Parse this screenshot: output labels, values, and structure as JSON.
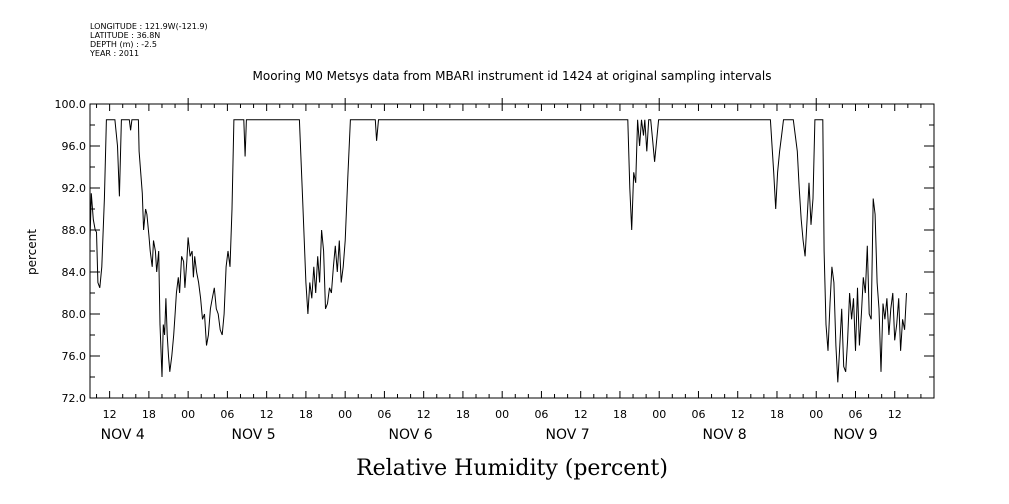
{
  "meta": {
    "longitude": "LONGITUDE : 121.9W(-121.9)",
    "latitude": "LATITUDE : 36.8N",
    "depth": "DEPTH (m) : -2.5",
    "year": "YEAR : 2011"
  },
  "chart_data": {
    "type": "line",
    "title": "Mooring M0 Metsys data from MBARI instrument id 1424 at original sampling intervals",
    "xlabel": "Relative Humidity (percent)",
    "ylabel": "percent",
    "ylim": [
      72.0,
      100.0
    ],
    "xlim_hours": [
      -15,
      114
    ],
    "y_ticks": [
      "72.0",
      "76.0",
      "80.0",
      "84.0",
      "88.0",
      "92.0",
      "96.0",
      "100.0"
    ],
    "x_ticks": [
      {
        "hour": -12,
        "label": "12"
      },
      {
        "hour": -6,
        "label": "18"
      },
      {
        "hour": 0,
        "label": "00"
      },
      {
        "hour": 6,
        "label": "06"
      },
      {
        "hour": 12,
        "label": "12"
      },
      {
        "hour": 18,
        "label": "18"
      },
      {
        "hour": 24,
        "label": "00"
      },
      {
        "hour": 30,
        "label": "06"
      },
      {
        "hour": 36,
        "label": "12"
      },
      {
        "hour": 42,
        "label": "18"
      },
      {
        "hour": 48,
        "label": "00"
      },
      {
        "hour": 54,
        "label": "06"
      },
      {
        "hour": 60,
        "label": "12"
      },
      {
        "hour": 66,
        "label": "18"
      },
      {
        "hour": 72,
        "label": "00"
      },
      {
        "hour": 78,
        "label": "06"
      },
      {
        "hour": 84,
        "label": "12"
      },
      {
        "hour": 90,
        "label": "18"
      },
      {
        "hour": 96,
        "label": "00"
      },
      {
        "hour": 102,
        "label": "06"
      },
      {
        "hour": 108,
        "label": "12"
      }
    ],
    "day_labels": [
      {
        "hour": -10,
        "label": "NOV  4"
      },
      {
        "hour": 10,
        "label": "NOV  5"
      },
      {
        "hour": 34,
        "label": "NOV  6"
      },
      {
        "hour": 58,
        "label": "NOV  7"
      },
      {
        "hour": 82,
        "label": "NOV  8"
      },
      {
        "hour": 102,
        "label": "NOV  9"
      }
    ],
    "grid": false,
    "series": [
      {
        "color": "#000000",
        "points": [
          [
            -15.0,
            87.0
          ],
          [
            -14.8,
            91.5
          ],
          [
            -14.5,
            89.0
          ],
          [
            -14.2,
            88.0
          ],
          [
            -14.0,
            87.8
          ],
          [
            -13.8,
            83.0
          ],
          [
            -13.5,
            82.5
          ],
          [
            -13.2,
            84.5
          ],
          [
            -12.8,
            91.0
          ],
          [
            -12.5,
            98.5
          ],
          [
            -11.2,
            98.5
          ],
          [
            -10.8,
            96.0
          ],
          [
            -10.5,
            91.2
          ],
          [
            -10.2,
            98.5
          ],
          [
            -9.0,
            98.5
          ],
          [
            -8.8,
            97.5
          ],
          [
            -8.6,
            98.5
          ],
          [
            -7.6,
            98.5
          ],
          [
            -7.5,
            95.5
          ],
          [
            -7.0,
            91.5
          ],
          [
            -6.8,
            88.0
          ],
          [
            -6.5,
            90.0
          ],
          [
            -6.3,
            89.5
          ],
          [
            -6.0,
            87.5
          ],
          [
            -5.8,
            86.0
          ],
          [
            -5.5,
            84.5
          ],
          [
            -5.3,
            87.0
          ],
          [
            -5.0,
            86.0
          ],
          [
            -4.8,
            84.0
          ],
          [
            -4.5,
            86.0
          ],
          [
            -4.3,
            79.0
          ],
          [
            -4.0,
            74.0
          ],
          [
            -3.8,
            79.0
          ],
          [
            -3.6,
            78.0
          ],
          [
            -3.4,
            81.5
          ],
          [
            -3.2,
            78.0
          ],
          [
            -3.0,
            76.0
          ],
          [
            -2.8,
            74.5
          ],
          [
            -2.5,
            76.0
          ],
          [
            -2.2,
            78.0
          ],
          [
            -2.0,
            80.0
          ],
          [
            -1.8,
            82.0
          ],
          [
            -1.5,
            83.5
          ],
          [
            -1.3,
            82.0
          ],
          [
            -1.0,
            85.5
          ],
          [
            -0.7,
            85.0
          ],
          [
            -0.5,
            82.5
          ],
          [
            -0.2,
            85.0
          ],
          [
            0.0,
            87.3
          ],
          [
            0.3,
            85.5
          ],
          [
            0.6,
            86.0
          ],
          [
            0.8,
            83.5
          ],
          [
            1.0,
            85.5
          ],
          [
            1.3,
            84.0
          ],
          [
            1.6,
            83.0
          ],
          [
            1.9,
            81.5
          ],
          [
            2.2,
            79.5
          ],
          [
            2.5,
            80.0
          ],
          [
            2.8,
            77.0
          ],
          [
            3.1,
            78.0
          ],
          [
            3.4,
            80.5
          ],
          [
            3.7,
            81.5
          ],
          [
            4.0,
            82.5
          ],
          [
            4.3,
            80.5
          ],
          [
            4.6,
            80.0
          ],
          [
            4.9,
            78.5
          ],
          [
            5.2,
            78.0
          ],
          [
            5.5,
            80.0
          ],
          [
            5.8,
            84.5
          ],
          [
            6.1,
            86.0
          ],
          [
            6.4,
            84.5
          ],
          [
            6.7,
            90.0
          ],
          [
            7.0,
            98.5
          ],
          [
            8.5,
            98.5
          ],
          [
            8.7,
            95.0
          ],
          [
            8.9,
            98.5
          ],
          [
            17.0,
            98.5
          ],
          [
            17.5,
            91.0
          ],
          [
            18.0,
            83.0
          ],
          [
            18.3,
            80.0
          ],
          [
            18.6,
            83.0
          ],
          [
            18.9,
            81.5
          ],
          [
            19.2,
            84.5
          ],
          [
            19.5,
            82.0
          ],
          [
            19.8,
            85.5
          ],
          [
            20.1,
            83.0
          ],
          [
            20.4,
            88.0
          ],
          [
            20.7,
            86.0
          ],
          [
            21.0,
            80.5
          ],
          [
            21.3,
            81.0
          ],
          [
            21.6,
            82.5
          ],
          [
            21.9,
            82.0
          ],
          [
            22.2,
            84.5
          ],
          [
            22.5,
            86.5
          ],
          [
            22.8,
            84.0
          ],
          [
            23.1,
            87.0
          ],
          [
            23.4,
            83.0
          ],
          [
            23.7,
            84.5
          ],
          [
            24.0,
            87.0
          ],
          [
            24.4,
            93.0
          ],
          [
            24.8,
            98.5
          ],
          [
            28.6,
            98.5
          ],
          [
            28.8,
            96.5
          ],
          [
            29.1,
            98.5
          ],
          [
            67.2,
            98.5
          ],
          [
            67.5,
            92.0
          ],
          [
            67.8,
            88.0
          ],
          [
            68.1,
            93.5
          ],
          [
            68.4,
            92.5
          ],
          [
            68.7,
            98.5
          ],
          [
            69.0,
            96.0
          ],
          [
            69.3,
            98.5
          ],
          [
            69.6,
            97.0
          ],
          [
            69.8,
            98.5
          ],
          [
            70.1,
            95.5
          ],
          [
            70.4,
            98.5
          ],
          [
            70.7,
            98.5
          ],
          [
            71.0,
            96.5
          ],
          [
            71.3,
            94.5
          ],
          [
            71.6,
            96.5
          ],
          [
            71.9,
            98.5
          ],
          [
            89.0,
            98.5
          ],
          [
            89.5,
            93.5
          ],
          [
            89.8,
            90.0
          ],
          [
            90.1,
            93.5
          ],
          [
            90.4,
            95.5
          ],
          [
            90.7,
            97.0
          ],
          [
            91.0,
            98.5
          ],
          [
            92.5,
            98.5
          ],
          [
            92.8,
            97.0
          ],
          [
            93.1,
            95.5
          ],
          [
            93.4,
            92.0
          ],
          [
            93.7,
            89.0
          ],
          [
            94.0,
            87.0
          ],
          [
            94.3,
            85.5
          ],
          [
            94.6,
            89.0
          ],
          [
            94.9,
            92.5
          ],
          [
            95.2,
            88.5
          ],
          [
            95.5,
            91.0
          ],
          [
            95.8,
            98.5
          ],
          [
            97.0,
            98.5
          ],
          [
            97.2,
            86.0
          ],
          [
            97.5,
            79.0
          ],
          [
            97.8,
            76.5
          ],
          [
            98.1,
            81.0
          ],
          [
            98.4,
            84.5
          ],
          [
            98.7,
            83.0
          ],
          [
            99.0,
            77.0
          ],
          [
            99.3,
            73.5
          ],
          [
            99.6,
            77.0
          ],
          [
            99.9,
            80.5
          ],
          [
            100.2,
            75.0
          ],
          [
            100.5,
            74.5
          ],
          [
            100.8,
            77.5
          ],
          [
            101.1,
            82.0
          ],
          [
            101.4,
            79.5
          ],
          [
            101.7,
            81.5
          ],
          [
            102.0,
            76.5
          ],
          [
            102.3,
            82.5
          ],
          [
            102.6,
            77.0
          ],
          [
            102.9,
            80.0
          ],
          [
            103.2,
            83.5
          ],
          [
            103.5,
            82.0
          ],
          [
            103.8,
            86.5
          ],
          [
            104.1,
            80.0
          ],
          [
            104.4,
            79.5
          ],
          [
            104.7,
            91.0
          ],
          [
            105.0,
            89.5
          ],
          [
            105.3,
            83.0
          ],
          [
            105.6,
            80.5
          ],
          [
            105.9,
            74.5
          ],
          [
            106.2,
            81.0
          ],
          [
            106.5,
            79.5
          ],
          [
            106.8,
            81.5
          ],
          [
            107.1,
            78.0
          ],
          [
            107.4,
            80.5
          ],
          [
            107.7,
            82.0
          ],
          [
            108.0,
            77.5
          ],
          [
            108.3,
            79.0
          ],
          [
            108.6,
            81.5
          ],
          [
            108.9,
            76.5
          ],
          [
            109.2,
            79.5
          ],
          [
            109.5,
            78.5
          ],
          [
            109.8,
            82.0
          ]
        ]
      }
    ]
  }
}
